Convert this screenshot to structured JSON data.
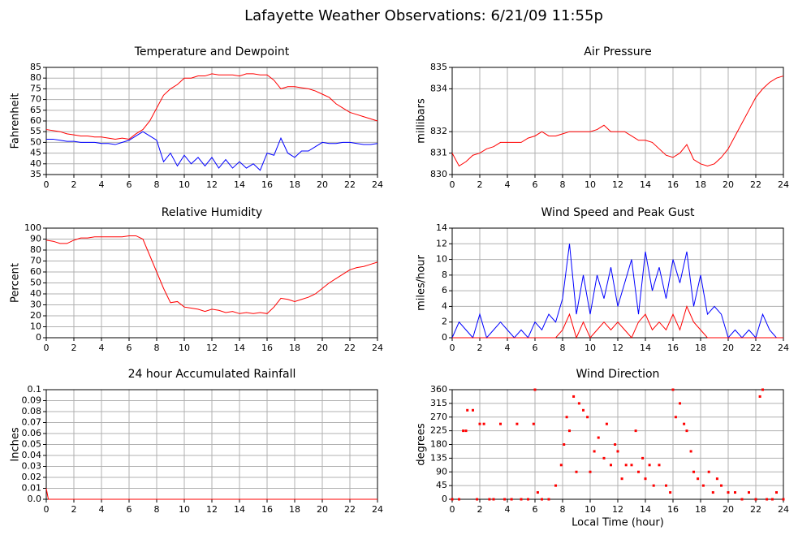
{
  "title": "Lafayette Weather Observations: 6/21/09 11:55p",
  "chart_data": [
    {
      "type": "line",
      "title": "Temperature and Dewpoint",
      "ylabel": "Fahrenheit",
      "x": [
        0,
        0.5,
        1,
        1.5,
        2,
        2.5,
        3,
        3.5,
        4,
        4.5,
        5,
        5.5,
        6,
        6.5,
        7,
        7.5,
        8,
        8.5,
        9,
        9.5,
        10,
        10.5,
        11,
        11.5,
        12,
        12.5,
        13,
        13.5,
        14,
        14.5,
        15,
        15.5,
        16,
        16.5,
        17,
        17.5,
        18,
        18.5,
        19,
        19.5,
        20,
        20.5,
        21,
        21.5,
        22,
        22.5,
        23,
        23.5,
        24
      ],
      "series": [
        {
          "color": "#ff0000",
          "values": [
            56,
            55.5,
            55,
            54,
            53.5,
            53,
            53,
            52.5,
            52.5,
            52,
            51.5,
            52,
            51.5,
            54,
            56,
            60,
            66,
            72,
            75,
            77,
            80,
            80,
            81,
            81,
            82,
            81.5,
            81.5,
            81.5,
            81,
            82,
            82,
            81.5,
            81.5,
            79,
            75,
            76,
            76,
            75.5,
            75,
            74,
            72.5,
            71,
            68,
            66,
            64,
            63,
            62,
            61,
            60
          ]
        },
        {
          "color": "#0000ff",
          "values": [
            51.5,
            51.5,
            51,
            50.5,
            50.5,
            50,
            50,
            50,
            49.5,
            49.5,
            49,
            50,
            51,
            53,
            55,
            53,
            51,
            41,
            45,
            39,
            44,
            40,
            43,
            39,
            43,
            38,
            42,
            38,
            41,
            38,
            40,
            37,
            45,
            44,
            52,
            45,
            43,
            46,
            46,
            48,
            50,
            49.5,
            49.5,
            50,
            50,
            49.5,
            49,
            49,
            49.5
          ]
        }
      ],
      "xlim": [
        0,
        24
      ],
      "xticks": [
        0,
        2,
        4,
        6,
        8,
        10,
        12,
        14,
        16,
        18,
        20,
        22,
        24
      ],
      "ylim": [
        35,
        85
      ],
      "yticks": [
        35,
        40,
        45,
        50,
        55,
        60,
        65,
        70,
        75,
        80,
        85
      ],
      "grid": true
    },
    {
      "type": "line",
      "title": "Air Pressure",
      "ylabel": "millibars",
      "x": [
        0,
        0.5,
        1,
        1.5,
        2,
        2.5,
        3,
        3.5,
        4,
        4.5,
        5,
        5.5,
        6,
        6.5,
        7,
        7.5,
        8,
        8.5,
        9,
        9.5,
        10,
        10.5,
        11,
        11.5,
        12,
        12.5,
        13,
        13.5,
        14,
        14.5,
        15,
        15.5,
        16,
        16.5,
        17,
        17.5,
        18,
        18.5,
        19,
        19.5,
        20,
        20.5,
        21,
        21.5,
        22,
        22.5,
        23,
        23.5,
        24
      ],
      "series": [
        {
          "color": "#ff0000",
          "values": [
            831,
            830.4,
            830.6,
            830.9,
            831,
            831.2,
            831.3,
            831.5,
            831.5,
            831.5,
            831.5,
            831.7,
            831.8,
            832,
            831.8,
            831.8,
            831.9,
            832,
            832,
            832,
            832,
            832.1,
            832.3,
            832,
            832,
            832,
            831.8,
            831.6,
            831.6,
            831.5,
            831.2,
            830.9,
            830.8,
            831,
            831.4,
            830.7,
            830.5,
            830.4,
            830.5,
            830.8,
            831.2,
            831.8,
            832.4,
            833,
            833.6,
            834,
            834.3,
            834.5,
            834.6
          ]
        }
      ],
      "xlim": [
        0,
        24
      ],
      "xticks": [
        0,
        2,
        4,
        6,
        8,
        10,
        12,
        14,
        16,
        18,
        20,
        22,
        24
      ],
      "ylim": [
        830,
        835
      ],
      "yticks": [
        830,
        831,
        832,
        834,
        835
      ],
      "grid": true
    },
    {
      "type": "line",
      "title": "Relative Humidity",
      "ylabel": "Percent",
      "x": [
        0,
        0.5,
        1,
        1.5,
        2,
        2.5,
        3,
        3.5,
        4,
        4.5,
        5,
        5.5,
        6,
        6.5,
        7,
        7.5,
        8,
        8.5,
        9,
        9.5,
        10,
        10.5,
        11,
        11.5,
        12,
        12.5,
        13,
        13.5,
        14,
        14.5,
        15,
        15.5,
        16,
        16.5,
        17,
        17.5,
        18,
        18.5,
        19,
        19.5,
        20,
        20.5,
        21,
        21.5,
        22,
        22.5,
        23,
        23.5,
        24
      ],
      "series": [
        {
          "color": "#ff0000",
          "values": [
            89,
            88,
            86,
            86,
            89,
            91,
            91,
            92,
            92,
            92,
            92,
            92,
            93,
            93,
            90,
            75,
            60,
            45,
            32,
            33,
            28,
            27,
            26,
            24,
            26,
            25,
            23,
            24,
            22,
            23,
            22,
            23,
            22,
            28,
            36,
            35,
            33,
            35,
            37,
            40,
            45,
            50,
            54,
            58,
            62,
            64,
            65,
            67,
            69
          ]
        }
      ],
      "xlim": [
        0,
        24
      ],
      "xticks": [
        0,
        2,
        4,
        6,
        8,
        10,
        12,
        14,
        16,
        18,
        20,
        22,
        24
      ],
      "ylim": [
        0,
        100
      ],
      "yticks": [
        0,
        10,
        20,
        30,
        40,
        50,
        60,
        70,
        80,
        90,
        100
      ],
      "grid": true
    },
    {
      "type": "line",
      "title": "Wind Speed and Peak Gust",
      "ylabel": "miles/hour",
      "x": [
        0,
        0.5,
        1,
        1.5,
        2,
        2.5,
        3,
        3.5,
        4,
        4.5,
        5,
        5.5,
        6,
        6.5,
        7,
        7.5,
        8,
        8.5,
        9,
        9.5,
        10,
        10.5,
        11,
        11.5,
        12,
        12.5,
        13,
        13.5,
        14,
        14.5,
        15,
        15.5,
        16,
        16.5,
        17,
        17.5,
        18,
        18.5,
        19,
        19.5,
        20,
        20.5,
        21,
        21.5,
        22,
        22.5,
        23,
        23.5,
        24
      ],
      "series": [
        {
          "color": "#0000ff",
          "values": [
            0,
            2,
            1,
            0,
            3,
            0,
            1,
            2,
            1,
            0,
            1,
            0,
            2,
            1,
            3,
            2,
            5,
            12,
            3,
            8,
            3,
            8,
            5,
            9,
            4,
            7,
            10,
            3,
            11,
            6,
            9,
            5,
            10,
            7,
            11,
            4,
            8,
            3,
            4,
            3,
            0,
            1,
            0,
            1,
            0,
            3,
            1,
            0,
            0
          ]
        },
        {
          "color": "#ff0000",
          "values": [
            0,
            0,
            0,
            0,
            0,
            0,
            0,
            0,
            0,
            0,
            0,
            0,
            0,
            0,
            0,
            0,
            1,
            3,
            0,
            2,
            0,
            1,
            2,
            1,
            2,
            1,
            0,
            2,
            3,
            1,
            2,
            1,
            3,
            1,
            4,
            2,
            1,
            0,
            0,
            0,
            0,
            0,
            0,
            0,
            0,
            0,
            0,
            0,
            0
          ]
        }
      ],
      "xlim": [
        0,
        24
      ],
      "xticks": [
        0,
        2,
        4,
        6,
        8,
        10,
        12,
        14,
        16,
        18,
        20,
        22,
        24
      ],
      "ylim": [
        0,
        14
      ],
      "yticks": [
        0,
        2,
        4,
        6,
        8,
        10,
        12,
        14
      ],
      "grid": true
    },
    {
      "type": "line",
      "title": "24 hour Accumulated Rainfall",
      "ylabel": "Inches",
      "x": [
        0,
        0.15,
        24
      ],
      "series": [
        {
          "color": "#ff0000",
          "values": [
            0.01,
            0,
            0
          ]
        }
      ],
      "xlim": [
        0,
        24
      ],
      "xticks": [
        0,
        2,
        4,
        6,
        8,
        10,
        12,
        14,
        16,
        18,
        20,
        22,
        24
      ],
      "ylim": [
        0,
        0.1
      ],
      "yticks": [
        {
          "value": 0,
          "label": "0.0"
        },
        0.01,
        0.02,
        0.03,
        0.04,
        0.05,
        0.06,
        0.07,
        0.08,
        0.09,
        0.1
      ],
      "grid": true
    },
    {
      "type": "scatter",
      "title": "Wind Direction",
      "ylabel": "degrees",
      "xlabel": "Local Time (hour)",
      "x": [
        0,
        0.5,
        0.8,
        1,
        1.1,
        1.5,
        1.8,
        2,
        2.3,
        2.7,
        3,
        3.5,
        3.8,
        4.3,
        4.7,
        5,
        5.5,
        5.9,
        6,
        6.2,
        6.5,
        7,
        7.5,
        7.9,
        8.1,
        8.3,
        8.5,
        8.8,
        9,
        9.2,
        9.5,
        9.8,
        10,
        10.3,
        10.6,
        11,
        11.2,
        11.5,
        11.8,
        12,
        12.3,
        12.6,
        13,
        13.3,
        13.5,
        13.8,
        14,
        14.3,
        14.6,
        15,
        15.5,
        15.8,
        16,
        16.2,
        16.5,
        16.8,
        17,
        17.3,
        17.5,
        17.8,
        18.2,
        18.6,
        18.9,
        19.2,
        19.5,
        20,
        20.5,
        21,
        21.5,
        22,
        22.3,
        22.5,
        22.8,
        23.2,
        23.5,
        24
      ],
      "series": [
        {
          "color": "#ff0000",
          "values": [
            0,
            0,
            225,
            225,
            292.5,
            292.5,
            0,
            247.5,
            247.5,
            0,
            0,
            247.5,
            0,
            0,
            247.5,
            0,
            0,
            247.5,
            360,
            22.5,
            0,
            0,
            45,
            112.5,
            180,
            270,
            225,
            337.5,
            90,
            315,
            292.5,
            270,
            90,
            157.5,
            202.5,
            135,
            247.5,
            112.5,
            180,
            157.5,
            67.5,
            112.5,
            112.5,
            225,
            90,
            135,
            67.5,
            112.5,
            45,
            112.5,
            45,
            22.5,
            360,
            270,
            315,
            247.5,
            225,
            157.5,
            90,
            67.5,
            45,
            90,
            22.5,
            67.5,
            45,
            22.5,
            22.5,
            0,
            22.5,
            0,
            337.5,
            360,
            0,
            0,
            22.5,
            0
          ]
        }
      ],
      "xlim": [
        0,
        24
      ],
      "xticks": [
        0,
        2,
        4,
        6,
        8,
        10,
        12,
        14,
        16,
        18,
        20,
        22,
        24
      ],
      "ylim": [
        0,
        360
      ],
      "yticks": [
        0,
        45,
        90,
        135,
        180,
        225,
        270,
        315,
        360
      ],
      "grid": true
    }
  ]
}
